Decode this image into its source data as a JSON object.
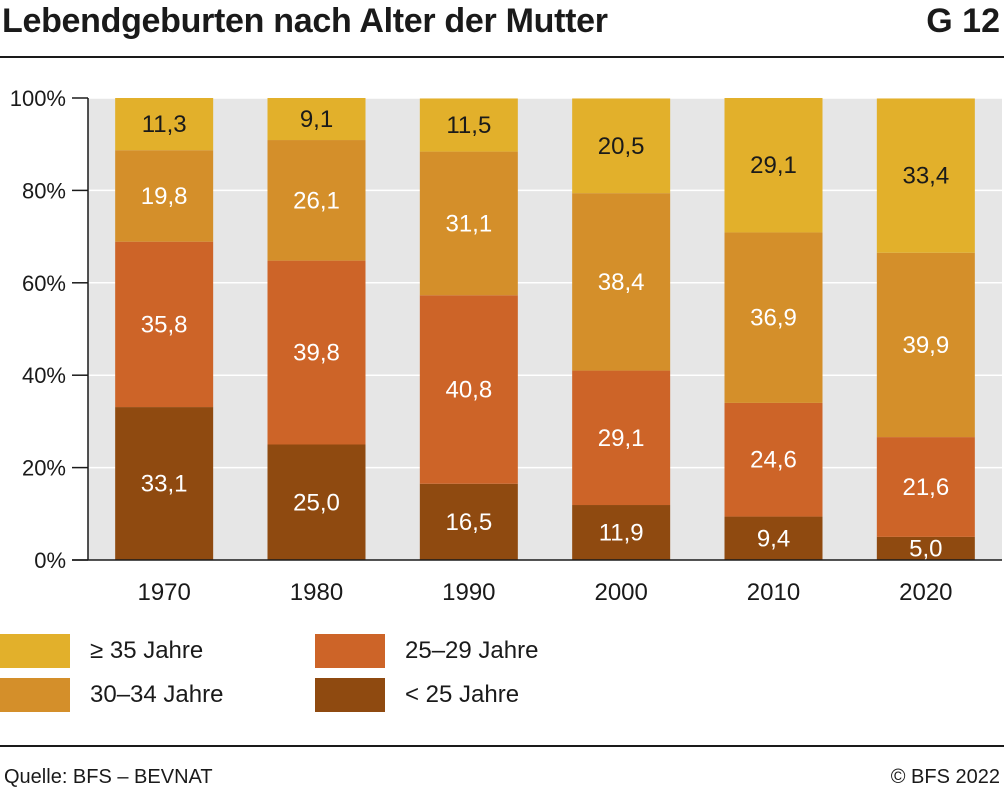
{
  "header": {
    "title": "Lebendgeburten nach Alter der Mutter",
    "code": "G 12"
  },
  "chart_data": {
    "type": "bar",
    "stacked": true,
    "normalized": true,
    "categories": [
      "1970",
      "1980",
      "1990",
      "2000",
      "2010",
      "2020"
    ],
    "series": [
      {
        "name": "< 25 Jahre",
        "values": [
          33.1,
          25.0,
          16.5,
          11.9,
          9.4,
          5.0
        ],
        "labels": [
          "33,1",
          "25,0",
          "16,5",
          "11,9",
          "9,4",
          "5,0"
        ],
        "color": "#8f4a10",
        "label_color": "#ffffff"
      },
      {
        "name": "25–29 Jahre",
        "values": [
          35.8,
          39.8,
          40.8,
          29.1,
          24.6,
          21.6
        ],
        "labels": [
          "35,8",
          "39,8",
          "40,8",
          "29,1",
          "24,6",
          "21,6"
        ],
        "color": "#cd6428",
        "label_color": "#ffffff"
      },
      {
        "name": "30–34 Jahre",
        "values": [
          19.8,
          26.1,
          31.1,
          38.4,
          36.9,
          39.9
        ],
        "labels": [
          "19,8",
          "26,1",
          "31,1",
          "38,4",
          "36,9",
          "39,9"
        ],
        "color": "#d48f2a",
        "label_color": "#ffffff"
      },
      {
        "name": "≥ 35 Jahre",
        "values": [
          11.3,
          9.1,
          11.5,
          20.5,
          29.1,
          33.4
        ],
        "labels": [
          "11,3",
          "9,1",
          "11,5",
          "20,5",
          "29,1",
          "33,4"
        ],
        "color": "#e2b02b",
        "label_color": "#1a1a1a"
      }
    ],
    "ylim": [
      0,
      100
    ],
    "yticks": [
      0,
      20,
      40,
      60,
      80,
      100
    ],
    "ytick_labels": [
      "0%",
      "20%",
      "40%",
      "60%",
      "80%",
      "100%"
    ],
    "plot_background": "#e6e6e6",
    "grid": true
  },
  "legend": {
    "placement": "bottom",
    "items": [
      {
        "label": "≥ 35 Jahre",
        "color": "#e2b02b"
      },
      {
        "label": "25–29 Jahre",
        "color": "#cd6428"
      },
      {
        "label": "30–34 Jahre",
        "color": "#d48f2a"
      },
      {
        "label": "< 25 Jahre",
        "color": "#8f4a10"
      }
    ]
  },
  "footer": {
    "source": "Quelle: BFS – BEVNAT",
    "copyright": "© BFS 2022"
  }
}
